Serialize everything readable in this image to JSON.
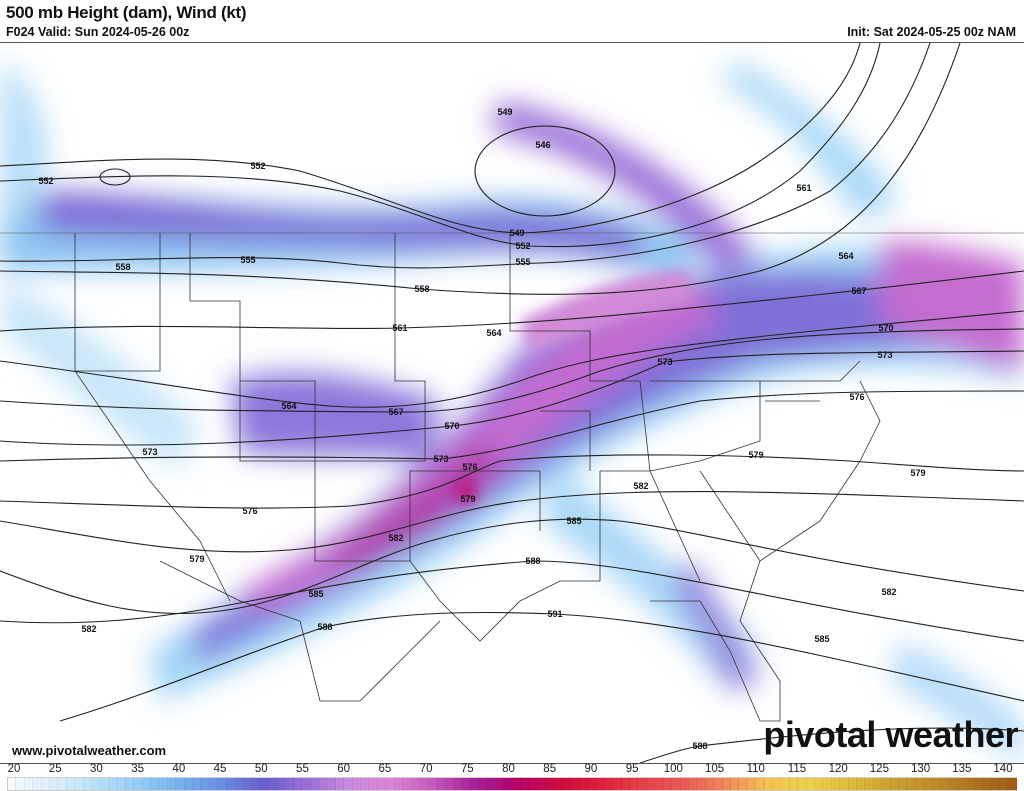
{
  "header": {
    "title": "500 mb Height (dam), Wind (kt)",
    "valid": "F024 Valid: Sun 2024-05-26 00z",
    "init": "Init: Sat 2024-05-25 00z NAM"
  },
  "map": {
    "height_contour_labels": [
      "549",
      "546",
      "552",
      "552",
      "561",
      "549",
      "552",
      "555",
      "558",
      "555",
      "564",
      "567",
      "558",
      "561",
      "564",
      "570",
      "573",
      "573",
      "576",
      "564",
      "567",
      "570",
      "573",
      "573",
      "576",
      "579",
      "579",
      "579",
      "576",
      "582",
      "585",
      "582",
      "579",
      "588",
      "582",
      "585",
      "588",
      "591",
      "582",
      "585",
      "588"
    ]
  },
  "footer": {
    "website": "www.pivotalweather.com",
    "logo": "pivotal weather"
  },
  "colorbar": {
    "unit": "kt",
    "ticks": [
      "20",
      "25",
      "30",
      "35",
      "40",
      "45",
      "50",
      "55",
      "60",
      "65",
      "70",
      "75",
      "80",
      "85",
      "90",
      "95",
      "100",
      "105",
      "110",
      "115",
      "120",
      "125",
      "130",
      "135",
      "140"
    ],
    "colors": [
      "#f4f9fe",
      "#dcefff",
      "#b8e2fb",
      "#94cdf5",
      "#78b2ee",
      "#6a8fe0",
      "#6a5fd0",
      "#9a6fd6",
      "#c98ae0",
      "#dc86d8",
      "#c75abd",
      "#a8209a",
      "#b5006e",
      "#cf0a3c",
      "#e0203c",
      "#e8404a",
      "#ec5a55",
      "#f08a5a",
      "#f5c450",
      "#ecd24a",
      "#dcba3a",
      "#cda032",
      "#be8a2a",
      "#ae7020",
      "#9c5a14"
    ]
  }
}
